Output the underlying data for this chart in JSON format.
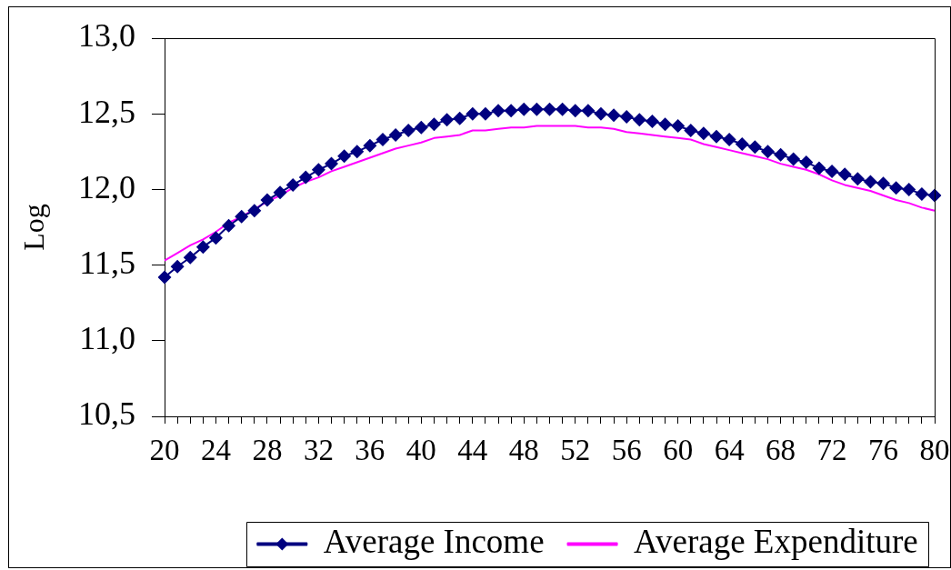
{
  "chart_data": {
    "type": "line",
    "ylabel": "Log",
    "categories": [
      "20",
      null,
      null,
      null,
      "24",
      null,
      null,
      null,
      "28",
      null,
      null,
      null,
      "32",
      null,
      null,
      null,
      "36",
      null,
      null,
      null,
      "40",
      null,
      null,
      null,
      "44",
      null,
      null,
      null,
      "48",
      null,
      null,
      null,
      "52",
      null,
      null,
      null,
      "56",
      null,
      null,
      null,
      "60",
      null,
      null,
      null,
      "64",
      null,
      null,
      null,
      "68",
      null,
      null,
      null,
      "72",
      null,
      null,
      null,
      "76",
      null,
      null,
      null,
      "80"
    ],
    "series": [
      {
        "name": "Average Income",
        "color": "#000080",
        "marker": "diamond",
        "values": [
          11.42,
          11.49,
          11.55,
          11.62,
          11.68,
          11.76,
          11.82,
          11.86,
          11.93,
          11.98,
          12.03,
          12.08,
          12.13,
          12.17,
          12.22,
          12.25,
          12.29,
          12.33,
          12.36,
          12.39,
          12.41,
          12.43,
          12.46,
          12.47,
          12.5,
          12.5,
          12.52,
          12.52,
          12.53,
          12.53,
          12.53,
          12.53,
          12.52,
          12.52,
          12.5,
          12.49,
          12.48,
          12.46,
          12.45,
          12.43,
          12.42,
          12.39,
          12.37,
          12.35,
          12.33,
          12.3,
          12.28,
          12.25,
          12.23,
          12.2,
          12.18,
          12.14,
          12.12,
          12.1,
          12.07,
          12.05,
          12.04,
          12.01,
          12.0,
          11.97,
          11.96
        ]
      },
      {
        "name": "Average Expenditure",
        "color": "#ff00ff",
        "marker": "none",
        "values": [
          11.53,
          11.58,
          11.63,
          11.67,
          11.72,
          11.78,
          11.82,
          11.87,
          11.92,
          11.96,
          12.01,
          12.05,
          12.08,
          12.12,
          12.15,
          12.18,
          12.21,
          12.24,
          12.27,
          12.29,
          12.31,
          12.34,
          12.35,
          12.36,
          12.39,
          12.39,
          12.4,
          12.41,
          12.41,
          12.42,
          12.42,
          12.42,
          12.42,
          12.41,
          12.41,
          12.4,
          12.38,
          12.37,
          12.36,
          12.35,
          12.34,
          12.33,
          12.3,
          12.28,
          12.26,
          12.24,
          12.22,
          12.2,
          12.17,
          12.15,
          12.13,
          12.1,
          12.06,
          12.03,
          12.01,
          11.99,
          11.96,
          11.93,
          11.91,
          11.88,
          11.86
        ]
      }
    ],
    "ylim": [
      10.5,
      13.0
    ],
    "yticks": [
      {
        "value": 10.5,
        "label": "10,5"
      },
      {
        "value": 11,
        "label": "11,0"
      },
      {
        "value": 11.5,
        "label": "11,5"
      },
      {
        "value": 12,
        "label": "12,0"
      },
      {
        "value": 12.5,
        "label": "12,5"
      },
      {
        "value": 13,
        "label": "13,0"
      }
    ],
    "grid": false,
    "legend": "bottom"
  }
}
